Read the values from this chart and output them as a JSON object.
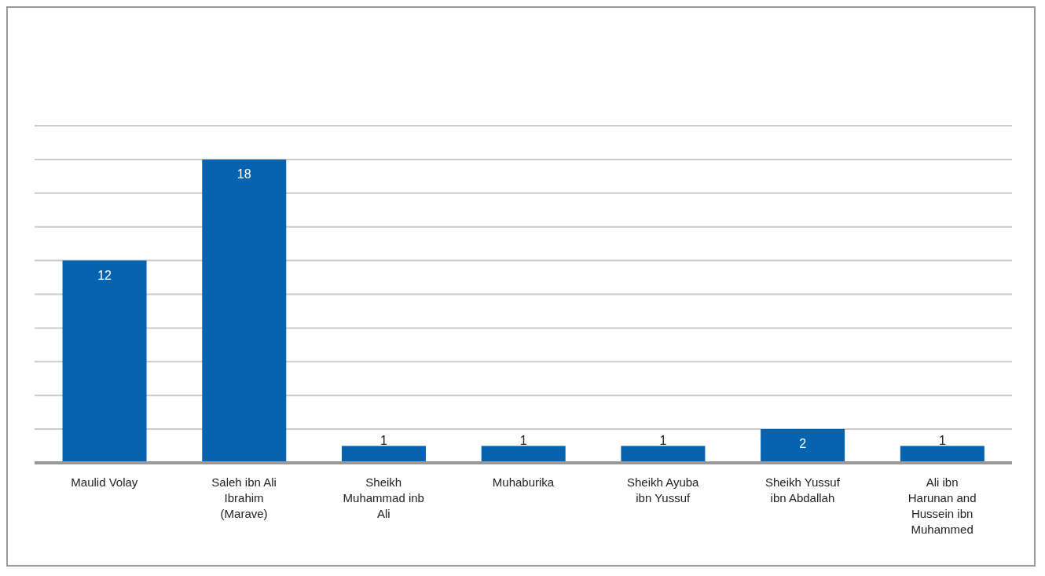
{
  "chart_data": {
    "type": "bar",
    "categories": [
      "Maulid Volay",
      "Saleh ibn Ali Ibrahim (Marave)",
      "Sheikh Muhammad inb Ali",
      "Muhaburika",
      "Sheikh Ayuba ibn Yussuf",
      "Sheikh Yussuf ibn Abdallah",
      "Ali ibn Harunan and Hussein ibn Muhammed"
    ],
    "values": [
      12,
      18,
      1,
      1,
      1,
      2,
      1
    ],
    "color": "#0563b0",
    "ylim": [
      0,
      20
    ],
    "yticks": [
      {
        "value": 0,
        "label": null
      },
      {
        "value": 2,
        "label": null
      },
      {
        "value": 4,
        "label": null
      },
      {
        "value": 6,
        "label": null
      },
      {
        "value": 8,
        "label": null
      },
      {
        "value": 10,
        "label": null
      },
      {
        "value": 12,
        "label": null
      },
      {
        "value": 14,
        "label": null
      },
      {
        "value": 16,
        "label": null
      },
      {
        "value": 18,
        "label": null
      },
      {
        "value": 20,
        "label": null
      }
    ],
    "tick_labels": "x",
    "grid": "y",
    "data_labels": true
  }
}
